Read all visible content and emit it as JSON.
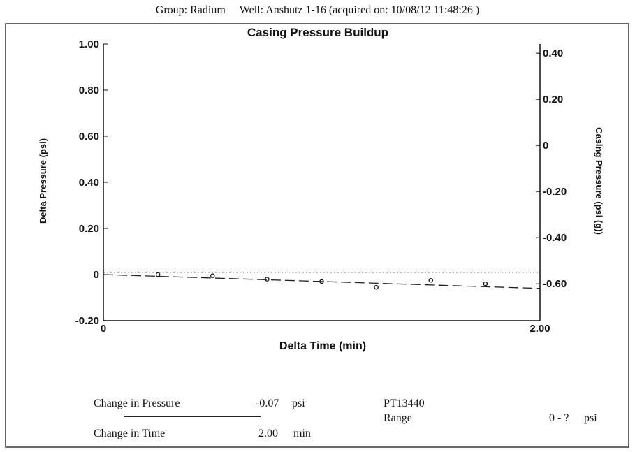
{
  "header": {
    "group": "Group: Radium",
    "well": "Well: Anshutz 1-16 (acquired on: 10/08/12 11:48:26 )"
  },
  "chart_data": {
    "type": "scatter",
    "title": "Casing Pressure Buildup",
    "xlabel": "Delta Time (min)",
    "ylabel": "Delta Pressure (psi)",
    "y2label": "Casing Pressure (psi (g))",
    "xlim": [
      0,
      2.0
    ],
    "ylim": [
      -0.2,
      1.0
    ],
    "y2lim": [
      -0.76,
      0.44
    ],
    "x_ticks": [
      "0",
      "2.00"
    ],
    "y_ticks": [
      "1.00",
      "0.80",
      "0.60",
      "0.40",
      "0.20",
      "0",
      "-0.20"
    ],
    "y2_ticks": [
      "0.40",
      "0.20",
      "0",
      "-0.20",
      "-0.40",
      "-0.60"
    ],
    "series": [
      {
        "style": "points",
        "x": [
          0.25,
          0.5,
          0.75,
          1.0,
          1.25,
          1.5,
          1.75
        ],
        "y": [
          0.0,
          -0.005,
          -0.02,
          -0.03,
          -0.055,
          -0.025,
          -0.04
        ]
      },
      {
        "style": "dashed-line",
        "x": [
          0,
          2.0
        ],
        "y": [
          0.0,
          -0.06
        ]
      },
      {
        "style": "dotted-line",
        "x": [
          0,
          2.0
        ],
        "y": [
          0.01,
          0.01
        ]
      }
    ]
  },
  "footer": {
    "change_pressure_label": "Change in Pressure",
    "change_pressure_value": "-0.07",
    "change_pressure_unit": "psi",
    "change_time_label": "Change in Time",
    "change_time_value": "2.00",
    "change_time_unit": "min",
    "sensor": "PT13440",
    "range_label": "Range",
    "range_value": "0 - ?",
    "range_unit": "psi"
  },
  "colors": {
    "ink": "#111111",
    "muted": "#333333"
  }
}
